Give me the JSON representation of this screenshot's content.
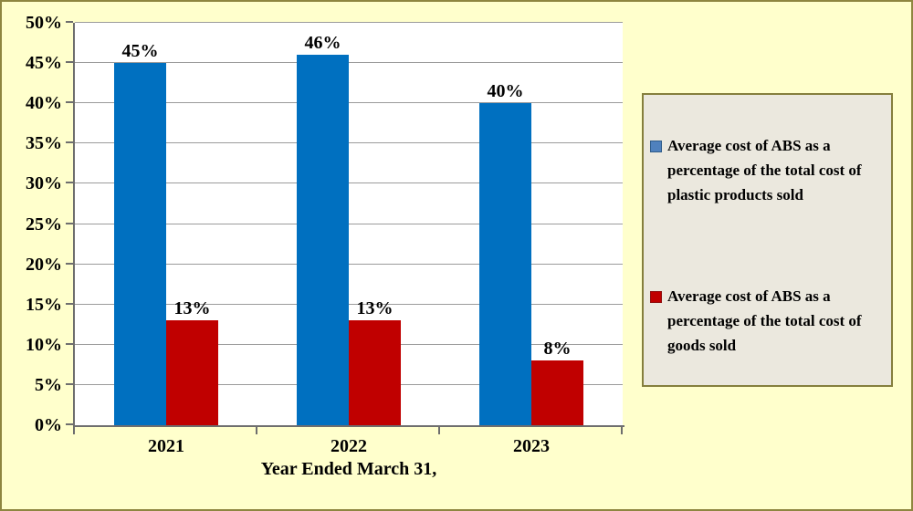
{
  "window": {
    "background": "#FFFFCC",
    "border_color": "#8E8640"
  },
  "chart_data": {
    "type": "bar",
    "categories": [
      "2021",
      "2022",
      "2023"
    ],
    "series": [
      {
        "name": "Average cost of ABS as a\npercentage of the total cost of\nplastic products sold",
        "color": "#0070C0",
        "marker_color": "#4F81BD",
        "marker_border": "#2E5C8A",
        "values": [
          45,
          46,
          40
        ],
        "data_labels": [
          "45%",
          "46%",
          "40%"
        ]
      },
      {
        "name": "Average cost of ABS as a\npercentage of the total cost of\ngoods sold",
        "color": "#C00000",
        "marker_color": "#C00000",
        "marker_border": "#8F1010",
        "values": [
          13,
          13,
          8
        ],
        "data_labels": [
          "13%",
          "13%",
          "8%"
        ]
      }
    ],
    "title": "",
    "xlabel": "Year Ended March 31,",
    "ylabel": "",
    "ylim": [
      0,
      50
    ],
    "ytick_step": 5,
    "ytick_labels": [
      "0%",
      "5%",
      "10%",
      "15%",
      "20%",
      "25%",
      "30%",
      "35%",
      "40%",
      "45%",
      "50%"
    ],
    "grid": true,
    "legend_position": "right",
    "plot_background": "#FFFFFF",
    "gridline_color": "#9B9B9B",
    "axis_color": "#6E6E6E",
    "legend_background": "#EBE8DE",
    "legend_border": "#857F3D",
    "text_color": "#000000"
  }
}
